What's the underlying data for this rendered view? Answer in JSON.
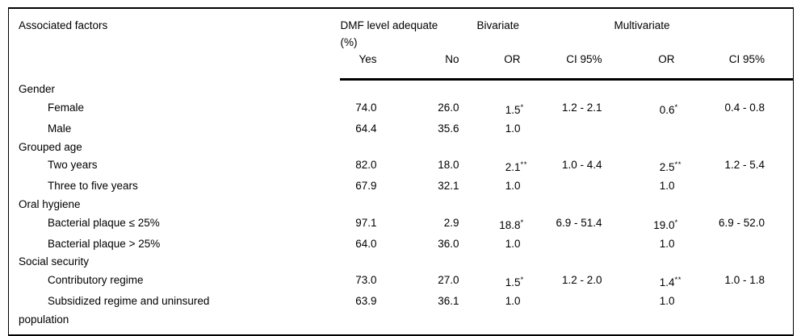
{
  "colors": {
    "background": "#ffffff",
    "text": "#000000",
    "border": "#000000"
  },
  "table": {
    "header": {
      "factors": "Associated factors",
      "dmf": "DMF level adequate\n(%)",
      "bivariate": "Bivariate",
      "multivariate": "Multivariate"
    },
    "subheader": {
      "yes": "Yes",
      "no": "No",
      "biv_or": "OR",
      "biv_ci": "CI 95%",
      "mult_or": "OR",
      "mult_ci": "CI 95%"
    },
    "rows": [
      {
        "type": "group",
        "label": "Gender"
      },
      {
        "type": "item",
        "label": "Female",
        "yes": "74.0",
        "no": "26.0",
        "biv_or": "1.5",
        "biv_or_sup": "*",
        "biv_ci": "1.2 - 2.1",
        "mult_or": "0.6",
        "mult_or_sup": "*",
        "mult_ci": "0.4 - 0.8"
      },
      {
        "type": "item",
        "label": "Male",
        "yes": "64.4",
        "no": "35.6",
        "biv_or": "1.0",
        "biv_or_sup": "",
        "biv_ci": "",
        "mult_or": "",
        "mult_or_sup": "",
        "mult_ci": ""
      },
      {
        "type": "group",
        "label": "Grouped age"
      },
      {
        "type": "item",
        "label": "Two years",
        "yes": "82.0",
        "no": "18.0",
        "biv_or": "2.1",
        "biv_or_sup": "**",
        "biv_ci": "1.0 - 4.4",
        "mult_or": "2.5",
        "mult_or_sup": "**",
        "mult_ci": "1.2 - 5.4"
      },
      {
        "type": "item",
        "label": "Three to five years",
        "yes": "67.9",
        "no": "32.1",
        "biv_or": "1.0",
        "biv_or_sup": "",
        "biv_ci": "",
        "mult_or": "1.0",
        "mult_or_sup": "",
        "mult_ci": ""
      },
      {
        "type": "group",
        "label": "Oral hygiene"
      },
      {
        "type": "item",
        "label": "Bacterial plaque ≤ 25%",
        "yes": "97.1",
        "no": "2.9",
        "biv_or": "18.8",
        "biv_or_sup": "*",
        "biv_ci": "6.9 - 51.4",
        "mult_or": "19.0",
        "mult_or_sup": "*",
        "mult_ci": "6.9 - 52.0"
      },
      {
        "type": "item",
        "label": "Bacterial plaque > 25%",
        "yes": "64.0",
        "no": "36.0",
        "biv_or": "1.0",
        "biv_or_sup": "",
        "biv_ci": "",
        "mult_or": "1.0",
        "mult_or_sup": "",
        "mult_ci": ""
      },
      {
        "type": "group",
        "label": "Social security"
      },
      {
        "type": "item",
        "label": "Contributory regime",
        "yes": "73.0",
        "no": "27.0",
        "biv_or": "1.5",
        "biv_or_sup": "*",
        "biv_ci": "1.2 - 2.0",
        "mult_or": "1.4",
        "mult_or_sup": "**",
        "mult_ci": "1.0 - 1.8"
      },
      {
        "type": "item",
        "label": "Subsidized regime and uninsured\npopulation",
        "yes": "63.9",
        "no": "36.1",
        "biv_or": "1.0",
        "biv_or_sup": "",
        "biv_ci": "",
        "mult_or": "1.0",
        "mult_or_sup": "",
        "mult_ci": ""
      }
    ]
  }
}
